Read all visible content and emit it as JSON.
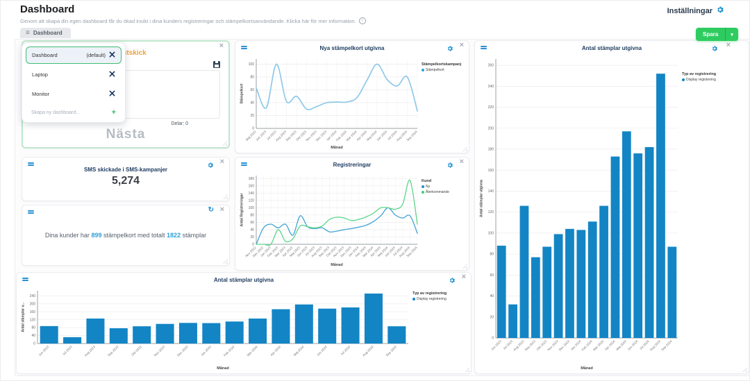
{
  "header": {
    "title": "Dashboard",
    "subtitle": "Genom att skapa din egen dashboard får du ökad insikt i dina kunders registreringar och stämpelkortsanvändande. Klicka här för mer information.",
    "settings_label": "Inställningar"
  },
  "tab": {
    "label": "Dashboard"
  },
  "toolbar": {
    "save_label": "Spara"
  },
  "dashboard_menu": {
    "items": [
      {
        "label": "Dashboard",
        "suffix": "(default)"
      },
      {
        "label": "Laptop"
      },
      {
        "label": "Monitor"
      }
    ],
    "new_placeholder": "Skapa ny dashboard..."
  },
  "sms_card": {
    "title": "SMS-utskick",
    "textarea_value": "",
    "delar_label": "Delar: 0",
    "next_label": "Nästa"
  },
  "kpi_card": {
    "title": "SMS skickade i SMS-kampanjer",
    "value": "5,274"
  },
  "summary_card": {
    "text_part1": "Dina kunder har",
    "value1": "899",
    "text_part2": "stämpelkort med totalt",
    "value2": "1822",
    "text_part3": "stämplar"
  },
  "colors": {
    "accent_blue": "#1d8fd1",
    "bar_blue": "#1385c5",
    "light_line_blue": "#8ec9e8",
    "line_blue": "#41a3d3",
    "line_green": "#5cd68a",
    "save_green": "#2ecc60",
    "orange_title": "#e8a43c",
    "navy_title": "#1d3a5f"
  },
  "chart_data": [
    {
      "type": "line",
      "title": "Nya stämpelkort utgivna",
      "xlabel": "Månad",
      "ylabel": "Stämpelkort",
      "legend_title": "Stämpelkortskampanj",
      "legend_position": "right",
      "grid": true,
      "ylim": [
        0,
        108
      ],
      "ytick": 20,
      "categories": [
        "Maj 2023",
        "Jun 2023",
        "Jul 2023",
        "Aug 2023",
        "Sep 2023",
        "Okt 2023",
        "Nov 2023",
        "Dec 2023",
        "Jan 2024",
        "Feb 2024",
        "Mar 2024",
        "Apr 2024",
        "Maj 2024",
        "Jun 2024",
        "Jul 2024",
        "Aug 2024",
        "Sep 2024"
      ],
      "series": [
        {
          "name": "Stämpelkort",
          "color": "#8ec9e8",
          "dot": "#2a9fd8",
          "width": 1.7,
          "values": [
            63,
            32,
            100,
            42,
            50,
            30,
            34,
            40,
            41,
            41,
            48,
            75,
            100,
            76,
            66,
            80,
            27
          ]
        }
      ]
    },
    {
      "type": "line",
      "title": "Registreringar",
      "xlabel": "Månad",
      "ylabel": "Antal Registreringar",
      "legend_title": "Kund",
      "legend_position": "right",
      "grid": true,
      "ylim": [
        0,
        188
      ],
      "ytick": 20,
      "categories": [
        "Nov 2022",
        "Dec 2022",
        "Jan 2023",
        "Feb 2023",
        "Mar 2023",
        "Apr 2023",
        "Maj 2023",
        "Jun 2023",
        "Jul 2023",
        "Aug 2023",
        "Sep 2023",
        "Okt 2023",
        "Nov 2023",
        "Dec 2023",
        "Jan 2024",
        "Feb 2024",
        "Mar 2024",
        "Apr 2024",
        "Maj 2024",
        "Jun 2024",
        "Jul 2024",
        "Aug 2024",
        "Sep 2024"
      ],
      "series": [
        {
          "name": "Ny",
          "color": "#41a3d3",
          "dot": "#1f8fce",
          "width": 1.3,
          "values": [
            0,
            45,
            55,
            45,
            55,
            25,
            78,
            48,
            43,
            45,
            34,
            36,
            40,
            43,
            47,
            52,
            62,
            78,
            100,
            80,
            72,
            78,
            30
          ]
        },
        {
          "name": "Återkommande",
          "color": "#5cd68a",
          "dot": "#3fcf7a",
          "width": 1.3,
          "values": [
            0,
            0,
            0,
            40,
            8,
            15,
            50,
            48,
            45,
            50,
            68,
            74,
            72,
            65,
            68,
            75,
            85,
            100,
            100,
            96,
            110,
            175,
            55
          ]
        }
      ]
    },
    {
      "type": "bar",
      "title": "Antal stämplar utgivna",
      "xlabel": "Månad",
      "ylabel": "Antal stämplar utgivna",
      "legend_title": "Typ av registrering",
      "legend_position": "right",
      "grid": true,
      "ylim": [
        0,
        266
      ],
      "ytick": 20,
      "categories": [
        "Jun 2023",
        "Jul 2023",
        "Aug 2023",
        "Sep 2023",
        "Okt 2023",
        "Nov 2023",
        "Dec 2023",
        "Jan 2024",
        "Feb 2024",
        "Mar 2024",
        "Apr 2024",
        "Maj 2024",
        "Jun 2024",
        "Jul 2024",
        "Aug 2024",
        "Sep 2024"
      ],
      "series": [
        {
          "name": "Display registrering",
          "color": "#1385c5",
          "dot": "#1385c5",
          "values": [
            88,
            32,
            126,
            77,
            87,
            99,
            104,
            103,
            111,
            126,
            173,
            197,
            176,
            182,
            252,
            87
          ]
        }
      ]
    },
    {
      "type": "bar",
      "title": "Antal stämplar utgivna",
      "xlabel": "Månad",
      "ylabel": "Antal stämplar u...",
      "legend_title": "Typ av registrering",
      "legend_position": "right",
      "grid": true,
      "ylim": [
        0,
        266
      ],
      "ytick": 40,
      "categories": [
        "Jun 2023",
        "Jul 2023",
        "Aug 2023",
        "Sep 2023",
        "Okt 2023",
        "Nov 2023",
        "Dec 2023",
        "Jan 2024",
        "Feb 2024",
        "Mar 2024",
        "Apr 2024",
        "Maj 2024",
        "Jun 2024",
        "Jul 2024",
        "Aug 2024",
        "Sep 2024"
      ],
      "series": [
        {
          "name": "Display registrering",
          "color": "#1385c5",
          "dot": "#1385c5",
          "values": [
            88,
            32,
            126,
            77,
            87,
            99,
            104,
            103,
            111,
            126,
            173,
            197,
            176,
            182,
            252,
            87
          ]
        }
      ]
    }
  ]
}
